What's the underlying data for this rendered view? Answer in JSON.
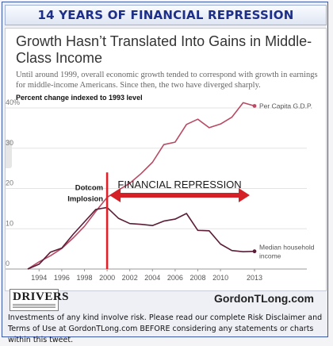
{
  "banner": {
    "title": "14 YEARS OF FINANCIAL REPRESSION"
  },
  "chart_data": {
    "type": "line",
    "title": "Growth Hasn’t Translated Into Gains in Middle-Class Income",
    "subtitle": "Until around 1999, overall economic growth tended to correspond with growth in earnings for middle-income Americans. Since then, the two have diverged sharply.",
    "ylabel": "Percent change indexed to 1993 level",
    "xlabel": "",
    "xlim": [
      1993,
      2013
    ],
    "ylim": [
      0,
      40
    ],
    "x_ticks": [
      "1994",
      "1996",
      "1998",
      "2000",
      "2002",
      "2004",
      "2006",
      "2008",
      "2010",
      "2013"
    ],
    "y_ticks": [
      "0",
      "10",
      "20",
      "30",
      "40%"
    ],
    "x": [
      1993,
      1994,
      1995,
      1996,
      1997,
      1998,
      1999,
      2000,
      2001,
      2002,
      2003,
      2004,
      2005,
      2006,
      2007,
      2008,
      2009,
      2010,
      2011,
      2012,
      2013
    ],
    "series": [
      {
        "name": "Per Capita G.D.P.",
        "color": "#b84a63",
        "values": [
          0,
          1.8,
          3.3,
          5.1,
          7.7,
          10.6,
          14.3,
          17.8,
          19.6,
          21.3,
          23.7,
          26.5,
          30.9,
          31.5,
          35.9,
          37.2,
          35.1,
          36.0,
          37.7,
          41.3,
          40.5
        ]
      },
      {
        "name": "Median household income",
        "color": "#5b1d37",
        "values": [
          0,
          1.2,
          4.2,
          5.2,
          8.6,
          11.7,
          14.8,
          15.3,
          12.6,
          11.3,
          11.1,
          10.8,
          11.9,
          12.4,
          13.8,
          9.6,
          9.5,
          6.2,
          4.6,
          4.3,
          4.4
        ]
      }
    ],
    "annotations": {
      "event_label": [
        "Dotcom",
        "Implosion"
      ],
      "event_x": 2000,
      "period_label": "FINANCIAL REPRESSION",
      "period_x": [
        2000,
        2013
      ],
      "period_y": 27,
      "event_color": "#e02028",
      "period_color": "#d62027"
    },
    "grid": true
  },
  "footer": {
    "logo": "DRIVERS",
    "site": "GordonTLong.com",
    "disclaimer": "Investments of any kind involve risk. Please read our complete Risk Disclaimer and Terms of Use at GordonTLong.com BEFORE considering any statements or charts within this tweet."
  }
}
